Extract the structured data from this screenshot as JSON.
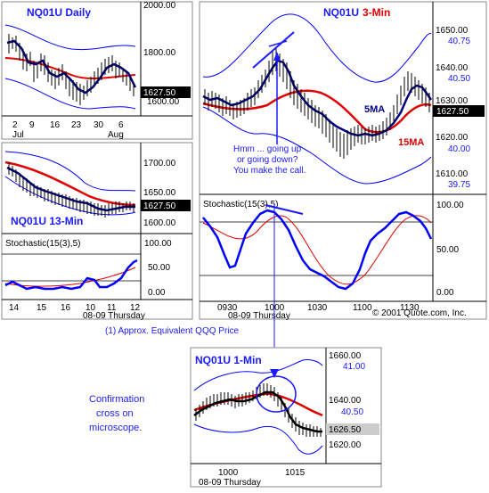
{
  "daily": {
    "title": "NQ01U Daily",
    "y_ticks": [
      "2000.00",
      "1800.00",
      "1600.00"
    ],
    "x_ticks": [
      "2",
      "9",
      "16",
      "23",
      "30",
      "6"
    ],
    "month_labels": [
      "Jul",
      "Aug"
    ],
    "price_box": "1627.50"
  },
  "min13": {
    "title": "NQ01U 13-Min",
    "y_ticks": [
      "1700.00",
      "1650.00",
      "1600.00"
    ],
    "price_box": "1627.50",
    "stoch_label": "Stochastic(15(3),5)",
    "stoch_ticks": [
      "100.00",
      "50.00",
      "0.00"
    ],
    "x_ticks": [
      "14",
      "15",
      "16",
      "10",
      "11",
      "12"
    ],
    "date_label": "08-09 Thursday"
  },
  "min3": {
    "title": "NQ01U",
    "title_suffix": "3-Min",
    "y_ticks": [
      "1650.00",
      "1640.00",
      "1630.00",
      "1620.00",
      "1610.00"
    ],
    "qqq_ticks": [
      "40.75",
      "40.50",
      "40.00",
      "39.75"
    ],
    "price_box": "1627.50",
    "label_5ma": "5MA",
    "label_15ma": "15MA",
    "annotation": [
      "Hmm ... going up",
      "or going down?",
      "You make the call."
    ],
    "stoch_label": "Stochastic(15(3),5)",
    "stoch_ticks": [
      "100.00",
      "50.00",
      "0.00"
    ],
    "x_ticks": [
      "0930",
      "1000",
      "1030",
      "1100",
      "1130"
    ],
    "date_label": "08-09 Thursday",
    "copyright": "© 2001 Quote.com, Inc."
  },
  "footnote": "(1) Approx. Equivalent QQQ Price",
  "min1": {
    "title": "NQ01U 1-Min",
    "y_ticks": [
      "1660.00",
      "1640.00",
      "1620.00"
    ],
    "qqq_ticks": [
      "41.00",
      "40.50"
    ],
    "price_box": "1626.50",
    "x_ticks": [
      "1000",
      "1015"
    ],
    "date_label": "08-09 Thursday"
  },
  "confirmation": [
    "Confirmation",
    "cross on",
    "microscope."
  ],
  "colors": {
    "price": "#000000",
    "ma_fast": "#000080",
    "ma_slow": "#e00000",
    "band": "#0000ff",
    "annot": "#1a1aff"
  }
}
